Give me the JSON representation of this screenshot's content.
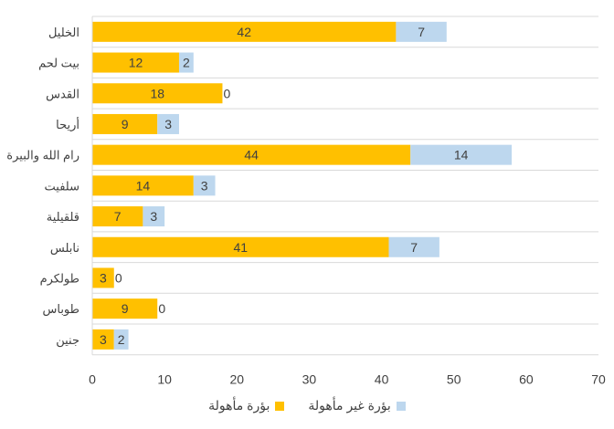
{
  "chart_data": {
    "type": "bar",
    "orientation": "horizontal",
    "stacked": true,
    "categories": [
      "الخليل",
      "بيت لحم",
      "القدس",
      "أريحا",
      "رام الله والبيرة",
      "سلفيت",
      "قلقيلية",
      "نابلس",
      "طولكرم",
      "طوباس",
      "جنين"
    ],
    "series": [
      {
        "name": "بؤرة مأهولة",
        "color": "#FFC000",
        "values": [
          42,
          12,
          18,
          9,
          44,
          14,
          7,
          41,
          3,
          9,
          3
        ]
      },
      {
        "name": "بؤرة غير مأهولة",
        "color": "#BDD7EE",
        "values": [
          7,
          2,
          0,
          3,
          14,
          3,
          3,
          7,
          0,
          0,
          2
        ]
      }
    ],
    "xlim": [
      0,
      70
    ],
    "x_ticks": [
      0,
      10,
      20,
      30,
      40,
      50,
      60,
      70
    ],
    "grid": "horizontal-lines-between-categories",
    "legend_position": "bottom"
  }
}
